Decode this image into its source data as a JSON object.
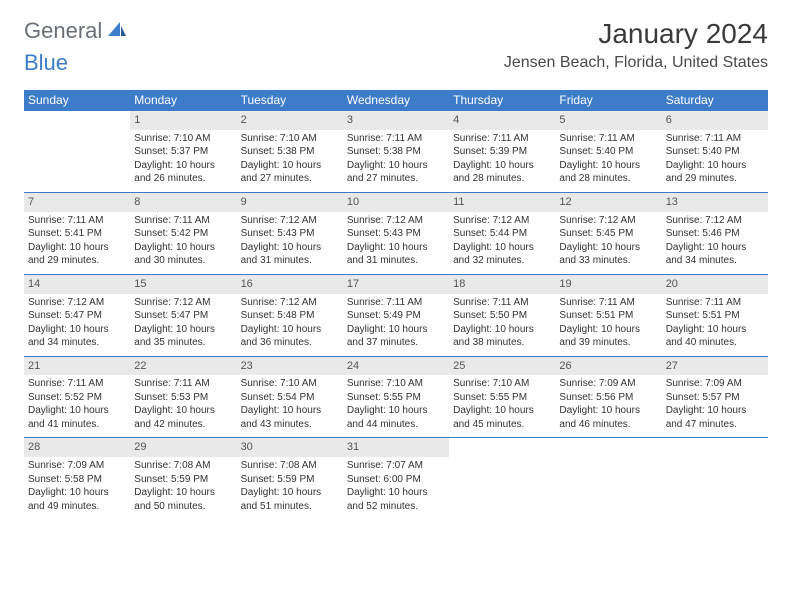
{
  "logo": {
    "text1": "General",
    "text2": "Blue"
  },
  "title": "January 2024",
  "location": "Jensen Beach, Florida, United States",
  "colors": {
    "header_bg": "#3d7cc9",
    "header_text": "#ffffff",
    "daynum_bg": "#e9e9e9",
    "daynum_text": "#555555",
    "body_text": "#333333",
    "divider": "#3d7cc9"
  },
  "font": {
    "title_size": 28,
    "location_size": 16,
    "header_size": 12,
    "cell_size": 10
  },
  "weekdays": [
    "Sunday",
    "Monday",
    "Tuesday",
    "Wednesday",
    "Thursday",
    "Friday",
    "Saturday"
  ],
  "weeks": [
    {
      "nums": [
        "",
        "1",
        "2",
        "3",
        "4",
        "5",
        "6"
      ],
      "cells": [
        {},
        {
          "sr": "Sunrise: 7:10 AM",
          "ss": "Sunset: 5:37 PM",
          "d1": "Daylight: 10 hours",
          "d2": "and 26 minutes."
        },
        {
          "sr": "Sunrise: 7:10 AM",
          "ss": "Sunset: 5:38 PM",
          "d1": "Daylight: 10 hours",
          "d2": "and 27 minutes."
        },
        {
          "sr": "Sunrise: 7:11 AM",
          "ss": "Sunset: 5:38 PM",
          "d1": "Daylight: 10 hours",
          "d2": "and 27 minutes."
        },
        {
          "sr": "Sunrise: 7:11 AM",
          "ss": "Sunset: 5:39 PM",
          "d1": "Daylight: 10 hours",
          "d2": "and 28 minutes."
        },
        {
          "sr": "Sunrise: 7:11 AM",
          "ss": "Sunset: 5:40 PM",
          "d1": "Daylight: 10 hours",
          "d2": "and 28 minutes."
        },
        {
          "sr": "Sunrise: 7:11 AM",
          "ss": "Sunset: 5:40 PM",
          "d1": "Daylight: 10 hours",
          "d2": "and 29 minutes."
        }
      ]
    },
    {
      "nums": [
        "7",
        "8",
        "9",
        "10",
        "11",
        "12",
        "13"
      ],
      "cells": [
        {
          "sr": "Sunrise: 7:11 AM",
          "ss": "Sunset: 5:41 PM",
          "d1": "Daylight: 10 hours",
          "d2": "and 29 minutes."
        },
        {
          "sr": "Sunrise: 7:11 AM",
          "ss": "Sunset: 5:42 PM",
          "d1": "Daylight: 10 hours",
          "d2": "and 30 minutes."
        },
        {
          "sr": "Sunrise: 7:12 AM",
          "ss": "Sunset: 5:43 PM",
          "d1": "Daylight: 10 hours",
          "d2": "and 31 minutes."
        },
        {
          "sr": "Sunrise: 7:12 AM",
          "ss": "Sunset: 5:43 PM",
          "d1": "Daylight: 10 hours",
          "d2": "and 31 minutes."
        },
        {
          "sr": "Sunrise: 7:12 AM",
          "ss": "Sunset: 5:44 PM",
          "d1": "Daylight: 10 hours",
          "d2": "and 32 minutes."
        },
        {
          "sr": "Sunrise: 7:12 AM",
          "ss": "Sunset: 5:45 PM",
          "d1": "Daylight: 10 hours",
          "d2": "and 33 minutes."
        },
        {
          "sr": "Sunrise: 7:12 AM",
          "ss": "Sunset: 5:46 PM",
          "d1": "Daylight: 10 hours",
          "d2": "and 34 minutes."
        }
      ]
    },
    {
      "nums": [
        "14",
        "15",
        "16",
        "17",
        "18",
        "19",
        "20"
      ],
      "cells": [
        {
          "sr": "Sunrise: 7:12 AM",
          "ss": "Sunset: 5:47 PM",
          "d1": "Daylight: 10 hours",
          "d2": "and 34 minutes."
        },
        {
          "sr": "Sunrise: 7:12 AM",
          "ss": "Sunset: 5:47 PM",
          "d1": "Daylight: 10 hours",
          "d2": "and 35 minutes."
        },
        {
          "sr": "Sunrise: 7:12 AM",
          "ss": "Sunset: 5:48 PM",
          "d1": "Daylight: 10 hours",
          "d2": "and 36 minutes."
        },
        {
          "sr": "Sunrise: 7:11 AM",
          "ss": "Sunset: 5:49 PM",
          "d1": "Daylight: 10 hours",
          "d2": "and 37 minutes."
        },
        {
          "sr": "Sunrise: 7:11 AM",
          "ss": "Sunset: 5:50 PM",
          "d1": "Daylight: 10 hours",
          "d2": "and 38 minutes."
        },
        {
          "sr": "Sunrise: 7:11 AM",
          "ss": "Sunset: 5:51 PM",
          "d1": "Daylight: 10 hours",
          "d2": "and 39 minutes."
        },
        {
          "sr": "Sunrise: 7:11 AM",
          "ss": "Sunset: 5:51 PM",
          "d1": "Daylight: 10 hours",
          "d2": "and 40 minutes."
        }
      ]
    },
    {
      "nums": [
        "21",
        "22",
        "23",
        "24",
        "25",
        "26",
        "27"
      ],
      "cells": [
        {
          "sr": "Sunrise: 7:11 AM",
          "ss": "Sunset: 5:52 PM",
          "d1": "Daylight: 10 hours",
          "d2": "and 41 minutes."
        },
        {
          "sr": "Sunrise: 7:11 AM",
          "ss": "Sunset: 5:53 PM",
          "d1": "Daylight: 10 hours",
          "d2": "and 42 minutes."
        },
        {
          "sr": "Sunrise: 7:10 AM",
          "ss": "Sunset: 5:54 PM",
          "d1": "Daylight: 10 hours",
          "d2": "and 43 minutes."
        },
        {
          "sr": "Sunrise: 7:10 AM",
          "ss": "Sunset: 5:55 PM",
          "d1": "Daylight: 10 hours",
          "d2": "and 44 minutes."
        },
        {
          "sr": "Sunrise: 7:10 AM",
          "ss": "Sunset: 5:55 PM",
          "d1": "Daylight: 10 hours",
          "d2": "and 45 minutes."
        },
        {
          "sr": "Sunrise: 7:09 AM",
          "ss": "Sunset: 5:56 PM",
          "d1": "Daylight: 10 hours",
          "d2": "and 46 minutes."
        },
        {
          "sr": "Sunrise: 7:09 AM",
          "ss": "Sunset: 5:57 PM",
          "d1": "Daylight: 10 hours",
          "d2": "and 47 minutes."
        }
      ]
    },
    {
      "nums": [
        "28",
        "29",
        "30",
        "31",
        "",
        "",
        ""
      ],
      "cells": [
        {
          "sr": "Sunrise: 7:09 AM",
          "ss": "Sunset: 5:58 PM",
          "d1": "Daylight: 10 hours",
          "d2": "and 49 minutes."
        },
        {
          "sr": "Sunrise: 7:08 AM",
          "ss": "Sunset: 5:59 PM",
          "d1": "Daylight: 10 hours",
          "d2": "and 50 minutes."
        },
        {
          "sr": "Sunrise: 7:08 AM",
          "ss": "Sunset: 5:59 PM",
          "d1": "Daylight: 10 hours",
          "d2": "and 51 minutes."
        },
        {
          "sr": "Sunrise: 7:07 AM",
          "ss": "Sunset: 6:00 PM",
          "d1": "Daylight: 10 hours",
          "d2": "and 52 minutes."
        },
        {},
        {},
        {}
      ]
    }
  ]
}
